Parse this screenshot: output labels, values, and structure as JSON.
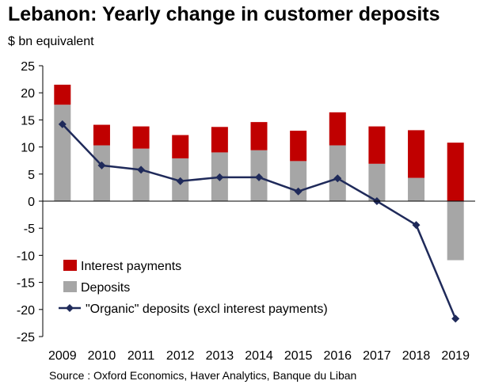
{
  "chart_data": {
    "type": "bar",
    "title": "Lebanon: Yearly change in customer deposits",
    "subtitle": "$ bn equivalent",
    "source": "Source : Oxford Economics, Haver Analytics, Banque du Liban",
    "categories": [
      "2009",
      "2010",
      "2011",
      "2012",
      "2013",
      "2014",
      "2015",
      "2016",
      "2017",
      "2018",
      "2019"
    ],
    "ylim": [
      -25,
      25
    ],
    "yticks": [
      25,
      20,
      15,
      10,
      5,
      0,
      -5,
      -10,
      -15,
      -20,
      -25
    ],
    "grid": false,
    "legend_position": "bottom-left",
    "series": [
      {
        "name": "Deposits",
        "type": "bar",
        "color": "#a6a6a6",
        "values": [
          17.8,
          10.3,
          9.7,
          7.9,
          9.0,
          9.4,
          7.4,
          10.3,
          6.9,
          4.3,
          -10.9
        ]
      },
      {
        "name": "Interest payments",
        "type": "bar",
        "color": "#c00000",
        "values": [
          3.7,
          3.8,
          4.1,
          4.3,
          4.7,
          5.2,
          5.6,
          6.1,
          6.9,
          8.8,
          10.8
        ]
      },
      {
        "name": "\"Organic\" deposits (excl interest payments)",
        "type": "line",
        "color": "#1f2a5a",
        "values": [
          14.2,
          6.6,
          5.8,
          3.7,
          4.4,
          4.4,
          1.8,
          4.2,
          0.0,
          -4.4,
          -21.7
        ]
      }
    ]
  }
}
